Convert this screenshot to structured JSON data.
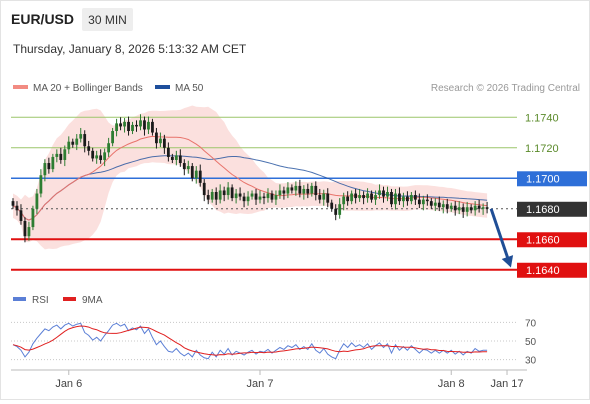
{
  "header": {
    "symbol": "EUR/USD",
    "timeframe": "30 MIN",
    "datetime": "Thursday, January 8, 2026 5:13:32 AM CET"
  },
  "legend": {
    "ma20_label": "MA 20 + Bollinger Bands",
    "ma50_label": "MA 50",
    "ma20_color": "#f28b82",
    "ma50_color": "#1e4f9c",
    "credit": "Research © 2026 Trading Central"
  },
  "rsi_legend": {
    "rsi_label": "RSI",
    "ma_label": "9MA",
    "rsi_color": "#5b7fd6",
    "ma_color": "#e02020"
  },
  "chart_data": {
    "type": "candlestick",
    "price_range": [
      1.163,
      1.1752
    ],
    "levels": [
      {
        "label": "1.1740",
        "value": 1.174,
        "kind": "resistance",
        "color": "#9cc66a"
      },
      {
        "label": "1.1720",
        "value": 1.172,
        "kind": "resistance",
        "color": "#9cc66a"
      },
      {
        "label": "1.1700",
        "value": 1.17,
        "kind": "pivot",
        "color": "#2e6fd8"
      },
      {
        "label": "1.1680",
        "value": 1.168,
        "kind": "last",
        "color": "#333333"
      },
      {
        "label": "1.1660",
        "value": 1.166,
        "kind": "support",
        "color": "#e01010"
      },
      {
        "label": "1.1640",
        "value": 1.164,
        "kind": "support",
        "color": "#e01010"
      }
    ],
    "x_ticks": [
      "Jan 6",
      "Jan 7",
      "Jan 8",
      "Jan 17"
    ],
    "x_tick_index": [
      14,
      62,
      110,
      124
    ],
    "n_slots": 126,
    "closes": [
      1.1682,
      1.1679,
      1.1672,
      1.1662,
      1.1668,
      1.168,
      1.169,
      1.1702,
      1.171,
      1.1706,
      1.1714,
      1.1716,
      1.1712,
      1.1719,
      1.1724,
      1.1722,
      1.1726,
      1.1729,
      1.1721,
      1.1718,
      1.1713,
      1.1715,
      1.1712,
      1.1717,
      1.1723,
      1.1731,
      1.1736,
      1.1734,
      1.1737,
      1.1731,
      1.1735,
      1.1734,
      1.1738,
      1.1732,
      1.1737,
      1.173,
      1.1723,
      1.1726,
      1.172,
      1.1714,
      1.1712,
      1.1715,
      1.171,
      1.1706,
      1.1708,
      1.17,
      1.1705,
      1.1697,
      1.1689,
      1.1686,
      1.1691,
      1.1686,
      1.1692,
      1.1689,
      1.1694,
      1.1687,
      1.169,
      1.1688,
      1.1685,
      1.1688,
      1.169,
      1.1686,
      1.1688,
      1.1687,
      1.169,
      1.1686,
      1.1689,
      1.1692,
      1.169,
      1.1694,
      1.1692,
      1.1695,
      1.169,
      1.1693,
      1.169,
      1.1695,
      1.1689,
      1.1686,
      1.169,
      1.1684,
      1.168,
      1.1676,
      1.1683,
      1.1688,
      1.1685,
      1.169,
      1.1687,
      1.1689,
      1.1687,
      1.169,
      1.1686,
      1.1689,
      1.1692,
      1.1688,
      1.1691,
      1.1683,
      1.169,
      1.1685,
      1.1688,
      1.1685,
      1.1689,
      1.1686,
      1.1683,
      1.1686,
      1.1685,
      1.1682,
      1.1684,
      1.1681,
      1.1683,
      1.168,
      1.1682,
      1.1679,
      1.1681,
      1.1678,
      1.1681,
      1.1679,
      1.1682,
      1.168,
      1.1681,
      1.168
    ],
    "forecast": {
      "from": 1.168,
      "to": 1.164
    },
    "rsi": {
      "levels": [
        70,
        50,
        30
      ],
      "range": [
        20,
        80
      ],
      "values": [
        46,
        44,
        40,
        33,
        38,
        47,
        53,
        58,
        63,
        61,
        65,
        67,
        63,
        67,
        69,
        66,
        68,
        69,
        59,
        56,
        51,
        54,
        50,
        56,
        61,
        67,
        69,
        66,
        68,
        61,
        64,
        62,
        66,
        58,
        63,
        54,
        46,
        50,
        44,
        39,
        38,
        42,
        37,
        34,
        37,
        33,
        40,
        35,
        32,
        31,
        38,
        33,
        40,
        36,
        42,
        35,
        39,
        37,
        35,
        38,
        40,
        36,
        39,
        38,
        41,
        37,
        40,
        43,
        41,
        45,
        43,
        46,
        41,
        44,
        41,
        47,
        40,
        37,
        42,
        36,
        33,
        31,
        40,
        47,
        43,
        48,
        44,
        46,
        43,
        47,
        41,
        45,
        48,
        43,
        47,
        37,
        46,
        40,
        44,
        40,
        45,
        41,
        37,
        41,
        40,
        37,
        40,
        37,
        40,
        37,
        40,
        36,
        39,
        35,
        39,
        37,
        42,
        39,
        40,
        40
      ]
    }
  }
}
